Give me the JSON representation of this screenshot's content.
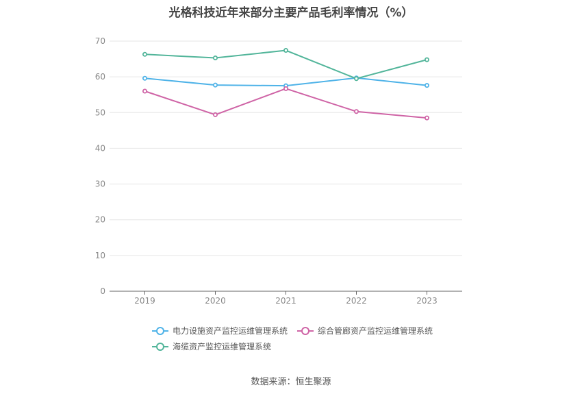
{
  "title": "光格科技近年来部分主要产品毛利率情况（%）",
  "source": "数据来源：恒生聚源",
  "chart_data": {
    "type": "line",
    "categories": [
      "2019",
      "2020",
      "2021",
      "2022",
      "2023"
    ],
    "ylim": [
      0,
      70
    ],
    "yticks": [
      "0",
      "10",
      "20",
      "30",
      "40",
      "50",
      "60",
      "70"
    ],
    "grid": true,
    "legend_position": "bottom",
    "series": [
      {
        "name": "电力设施资产监控运维管理系统",
        "color": "#4fb3e8",
        "values": [
          59.6,
          57.7,
          57.5,
          59.7,
          57.6
        ]
      },
      {
        "name": "综合管廊资产监控运维管理系统",
        "color": "#cf64a6",
        "values": [
          56.0,
          49.4,
          56.7,
          50.3,
          48.5
        ]
      },
      {
        "name": "海缆资产监控运维管理系统",
        "color": "#52b59a",
        "values": [
          66.3,
          65.3,
          67.4,
          59.5,
          64.8
        ]
      }
    ]
  }
}
